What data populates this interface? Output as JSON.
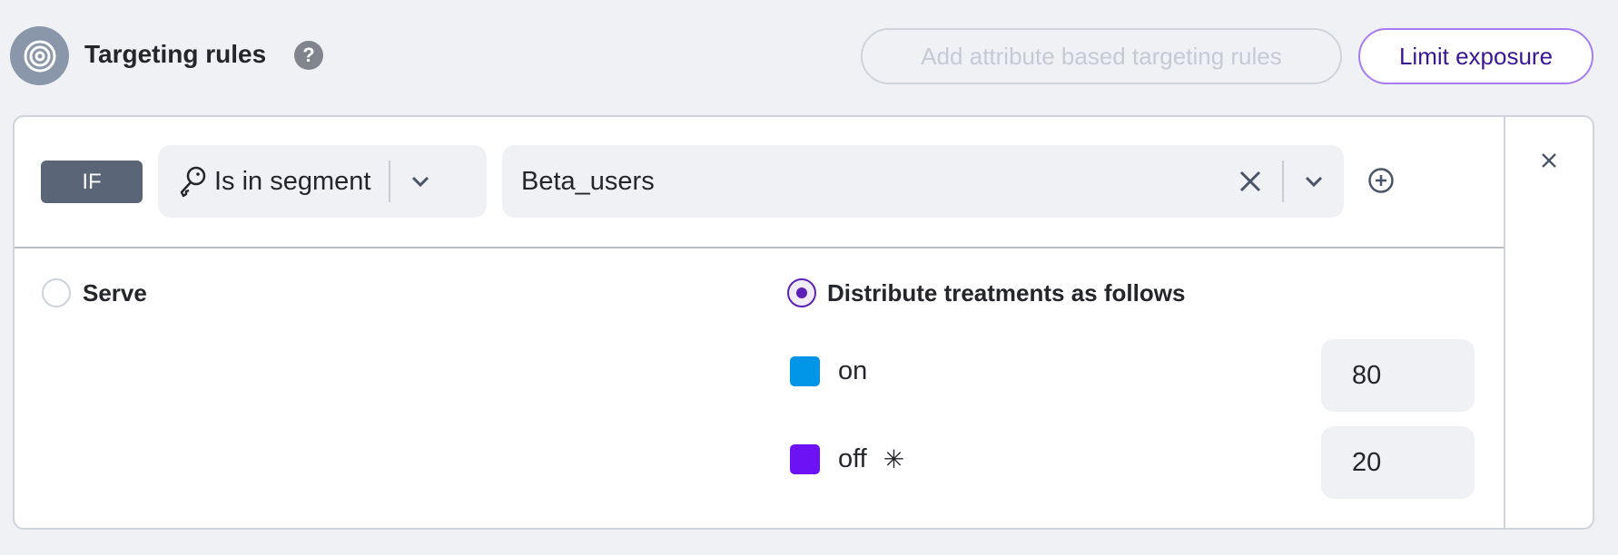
{
  "header": {
    "title": "Targeting rules",
    "help_icon": "question-circle-icon",
    "add_rules_label": "Add attribute based targeting rules",
    "limit_label": "Limit exposure"
  },
  "rule": {
    "if_label": "IF",
    "matcher": "Is in segment",
    "segment_value": "Beta_users"
  },
  "serve": {
    "label": "Serve",
    "selected": false
  },
  "distribute": {
    "label": "Distribute treatments as follows",
    "selected": true,
    "treatments": [
      {
        "name": "on",
        "color": "#0095e6",
        "value": "80"
      },
      {
        "name": "off",
        "color": "#6c12f5",
        "value": "20",
        "default_marker": "✳"
      }
    ]
  },
  "colors": {
    "accent": "#5b21b6",
    "if_badge": "#5a6578"
  }
}
